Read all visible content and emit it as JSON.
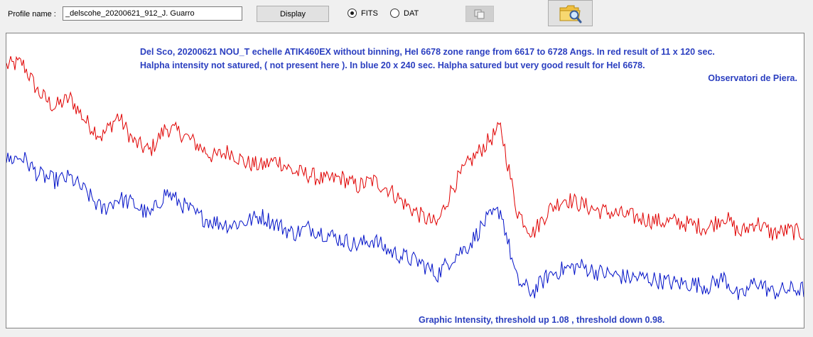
{
  "toolbar": {
    "profile_label": "Profile name :",
    "profile_value": "_delscohe_20200621_912_J. Guarro",
    "display_label": "Display",
    "radio_fits": "FITS",
    "radio_dat": "DAT",
    "selected_format": "FITS",
    "copy_icon": "copy-icon",
    "folder_icon": "folder-search-icon"
  },
  "plot": {
    "note_line1": "Del Sco,  20200621 NOU_T echelle ATIK460EX without binning, HeI 6678 zone range from 6617 to 6728 Angs. In red result of 11 x 120 sec.",
    "note_line2": "Halpha intensity not satured, ( not present here ).     In blue  20 x 240 sec. Halpha satured but very good result for HeI 6678.",
    "note_line3": "Observatori de Piera.",
    "footer": "Graphic Intensity, threshold up 1.08 , threshold down 0.98.",
    "colors": {
      "red_series": "#e00000",
      "blue_series": "#0010c8",
      "text": "#2b3fc0"
    }
  },
  "chart_data": {
    "type": "line",
    "title": "",
    "xlabel": "",
    "ylabel": "",
    "x": [
      0.0,
      0.02,
      0.04,
      0.06,
      0.08,
      0.1,
      0.12,
      0.14,
      0.16,
      0.18,
      0.2,
      0.22,
      0.24,
      0.26,
      0.28,
      0.3,
      0.32,
      0.34,
      0.36,
      0.38,
      0.4,
      0.42,
      0.44,
      0.46,
      0.48,
      0.5,
      0.52,
      0.54,
      0.56,
      0.58,
      0.6,
      0.62,
      0.64,
      0.66,
      0.68,
      0.7,
      0.72,
      0.74,
      0.76,
      0.78,
      0.8,
      0.82,
      0.84,
      0.86,
      0.88,
      0.9,
      0.92,
      0.94,
      0.96,
      0.98,
      1.0
    ],
    "ylim": [
      0.98,
      1.08
    ],
    "series": [
      {
        "values": [
          1.069,
          1.07,
          1.06,
          1.055,
          1.058,
          1.05,
          1.045,
          1.052,
          1.043,
          1.04,
          1.048,
          1.046,
          1.042,
          1.038,
          1.04,
          1.036,
          1.035,
          1.037,
          1.033,
          1.032,
          1.03,
          1.031,
          1.028,
          1.03,
          1.027,
          1.022,
          1.018,
          1.015,
          1.028,
          1.036,
          1.042,
          1.048,
          1.02,
          1.012,
          1.02,
          1.024,
          1.022,
          1.02,
          1.019,
          1.018,
          1.017,
          1.016,
          1.016,
          1.015,
          1.014,
          1.018,
          1.012,
          1.016,
          1.012,
          1.013,
          1.012
        ]
      },
      {
        "values": [
          1.037,
          1.038,
          1.032,
          1.03,
          1.031,
          1.026,
          1.02,
          1.024,
          1.022,
          1.018,
          1.026,
          1.022,
          1.018,
          1.016,
          1.015,
          1.016,
          1.018,
          1.015,
          1.012,
          1.014,
          1.012,
          1.01,
          1.008,
          1.01,
          1.006,
          1.004,
          1.002,
          0.998,
          1.004,
          1.008,
          1.016,
          1.02,
          0.996,
          0.992,
          0.998,
          1.0,
          1.001,
          0.999,
          0.998,
          0.997,
          0.997,
          0.996,
          0.995,
          0.995,
          0.994,
          0.997,
          0.99,
          0.996,
          0.992,
          0.993,
          0.993
        ]
      }
    ]
  }
}
